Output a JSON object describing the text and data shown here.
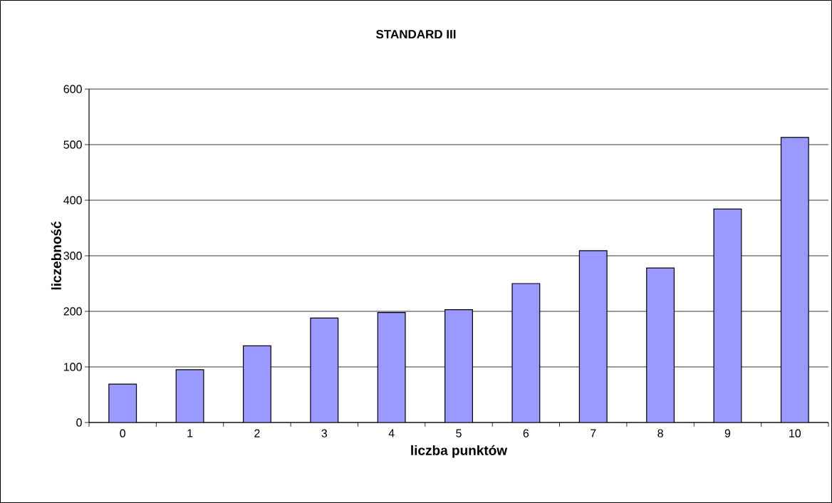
{
  "chart_data": {
    "type": "bar",
    "title": "STANDARD III",
    "xlabel": "liczba punktów",
    "ylabel": "liczebność",
    "categories": [
      "0",
      "1",
      "2",
      "3",
      "4",
      "5",
      "6",
      "7",
      "8",
      "9",
      "10"
    ],
    "values": [
      69,
      95,
      138,
      188,
      198,
      203,
      250,
      309,
      278,
      384,
      513
    ],
    "color": "#9999ff",
    "ylim": [
      0,
      600
    ],
    "yticks": [
      0,
      100,
      200,
      300,
      400,
      500,
      600
    ],
    "grid": "y"
  }
}
